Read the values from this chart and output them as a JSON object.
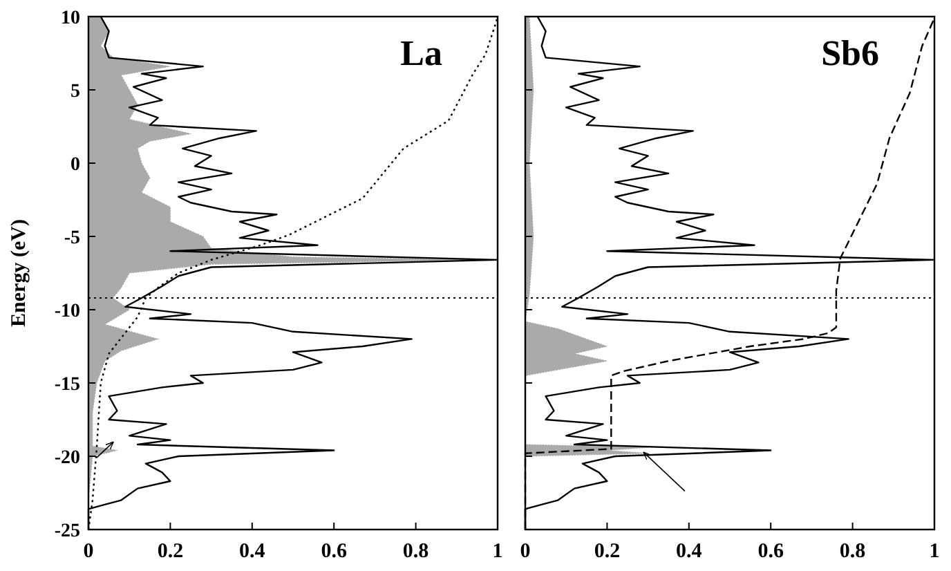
{
  "chart_data": [
    {
      "type": "line",
      "title": "La",
      "ylabel": "Energy (eV)",
      "orientation": "horizontal",
      "xlim": [
        0,
        1
      ],
      "xticks": [
        0,
        0.2,
        0.4,
        0.6,
        0.8,
        1
      ],
      "ylim": [
        -25,
        10
      ],
      "yticks": [
        10,
        5,
        0,
        -5,
        -10,
        -15,
        -20,
        -25
      ],
      "ref_lines": [
        {
          "axis": "y",
          "value": -9.2,
          "line_style": "dotted"
        }
      ],
      "series": [
        {
          "type": "area",
          "color": "#aaaaaa",
          "x": [
            10,
            9,
            8,
            7.2,
            6.6,
            6,
            5,
            4,
            3,
            2,
            1.5,
            1,
            0,
            -1,
            -2,
            -3,
            -4,
            -5,
            -5.8,
            -6.4,
            -6.6,
            -6.9,
            -7.5,
            -8.5,
            -9.2,
            -10,
            -11,
            -12,
            -12.8,
            -13.5,
            -15,
            -17,
            -19.3,
            -19.6,
            -20,
            -23,
            -25
          ],
          "values": [
            0.03,
            0.05,
            0.03,
            0.06,
            0.2,
            0.08,
            0.1,
            0.12,
            0.1,
            0.25,
            0.15,
            0.12,
            0.13,
            0.15,
            0.13,
            0.2,
            0.2,
            0.28,
            0.3,
            0.5,
            0.95,
            0.3,
            0.1,
            0.08,
            0.06,
            0.1,
            0.04,
            0.17,
            0.08,
            0.04,
            0.02,
            0.01,
            0.01,
            0.07,
            0.01,
            0,
            0
          ]
        },
        {
          "type": "line",
          "color": "#000000",
          "line_style": "solid",
          "x": [
            10,
            9,
            8,
            7.2,
            6.6,
            6.1,
            5.8,
            5.2,
            4.3,
            3.8,
            3.1,
            2.6,
            2.2,
            1.7,
            1.0,
            0.5,
            -0.2,
            -0.7,
            -1.3,
            -1.8,
            -2.3,
            -2.7,
            -3.3,
            -3.5,
            -4.0,
            -4.6,
            -5.1,
            -5.6,
            -6.0,
            -6.6,
            -7.1,
            -7.7,
            -8.4,
            -9.2,
            -9.8,
            -10.3,
            -10.6,
            -10.9,
            -11.5,
            -12.0,
            -12.5,
            -12.9,
            -13.6,
            -14.1,
            -14.5,
            -15.0,
            -15.3,
            -15.9,
            -16.9,
            -17.5,
            -17.8,
            -18.6,
            -18.9,
            -19.2,
            -19.6,
            -20.0,
            -20.5,
            -21.1,
            -21.7,
            -22.2,
            -23.0,
            -23.3,
            -23.6,
            -25
          ],
          "values": [
            0.03,
            0.05,
            0.04,
            0.05,
            0.28,
            0.13,
            0.19,
            0.11,
            0.18,
            0.1,
            0.17,
            0.15,
            0.41,
            0.32,
            0.23,
            0.3,
            0.26,
            0.35,
            0.22,
            0.3,
            0.22,
            0.25,
            0.35,
            0.46,
            0.37,
            0.44,
            0.37,
            0.56,
            0.2,
            1.0,
            0.3,
            0.22,
            0.18,
            0.13,
            0.09,
            0.25,
            0.15,
            0.4,
            0.5,
            0.79,
            0.67,
            0.5,
            0.57,
            0.5,
            0.25,
            0.28,
            0.18,
            0.05,
            0.07,
            0.05,
            0.19,
            0.1,
            0.2,
            0.12,
            0.6,
            0.22,
            0.14,
            0.18,
            0.2,
            0.12,
            0.08,
            0.04,
            0,
            0
          ]
        },
        {
          "color": "#000000",
          "line_style": "dotted",
          "x": [
            -25,
            -23,
            -19.5,
            -15,
            -13,
            -10.5,
            -9.2,
            -8.5,
            -7.5,
            -6.6,
            -5.6,
            -4.9,
            -2.4,
            1.0,
            2.9,
            6.1,
            7.4,
            9.5,
            10
          ],
          "values": [
            0,
            0.01,
            0.02,
            0.03,
            0.05,
            0.12,
            0.14,
            0.17,
            0.22,
            0.3,
            0.42,
            0.49,
            0.67,
            0.77,
            0.88,
            0.94,
            0.97,
            0.995,
            1.0
          ]
        }
      ]
    },
    {
      "type": "line",
      "title": "Sb6",
      "orientation": "horizontal",
      "xlim": [
        0,
        1
      ],
      "xticks": [
        0,
        0.2,
        0.4,
        0.6,
        0.8,
        1
      ],
      "ylim": [
        -25,
        10
      ],
      "yticks": [
        {
          "value": 10,
          "label": null
        },
        {
          "value": 5,
          "label": null
        },
        {
          "value": 0,
          "label": null
        },
        {
          "value": -5,
          "label": null
        },
        {
          "value": -10,
          "label": null
        },
        {
          "value": -15,
          "label": null
        },
        {
          "value": -20,
          "label": null
        },
        {
          "value": -25,
          "label": null
        }
      ],
      "tick_labels": "x",
      "ref_lines": [
        {
          "axis": "y",
          "value": -9.2,
          "line_style": "dotted"
        }
      ],
      "series": [
        {
          "type": "area",
          "color": "#aaaaaa",
          "x": [
            10,
            5,
            0,
            -5,
            -9,
            -10.8,
            -11.3,
            -12,
            -12.5,
            -13,
            -13.5,
            -14,
            -14.5,
            -19.2,
            -19.4,
            -19.6,
            -19.8,
            -20,
            -25
          ],
          "values": [
            0.01,
            0.02,
            0.01,
            0.02,
            0.01,
            0,
            0.08,
            0.15,
            0.2,
            0.12,
            0.2,
            0.1,
            0,
            0,
            0.3,
            0.2,
            0.3,
            0,
            0
          ]
        },
        {
          "type": "line",
          "color": "#000000",
          "line_style": "solid",
          "x": [
            10,
            9,
            8,
            7.2,
            6.6,
            6.1,
            5.8,
            5.2,
            4.3,
            3.8,
            3.1,
            2.6,
            2.2,
            1.7,
            1.0,
            0.5,
            -0.2,
            -0.7,
            -1.3,
            -1.8,
            -2.3,
            -2.7,
            -3.3,
            -3.5,
            -4.0,
            -4.6,
            -5.1,
            -5.6,
            -6.0,
            -6.6,
            -7.1,
            -7.7,
            -8.4,
            -9.2,
            -9.8,
            -10.3,
            -10.6,
            -10.9,
            -11.5,
            -12.0,
            -12.5,
            -12.9,
            -13.6,
            -14.1,
            -14.5,
            -15.0,
            -15.3,
            -15.9,
            -16.9,
            -17.5,
            -17.8,
            -18.6,
            -18.9,
            -19.2,
            -19.6,
            -20.0,
            -20.5,
            -21.1,
            -21.7,
            -22.2,
            -23.0,
            -23.3,
            -23.6,
            -25
          ],
          "values": [
            0.03,
            0.05,
            0.04,
            0.05,
            0.28,
            0.13,
            0.19,
            0.11,
            0.18,
            0.1,
            0.17,
            0.15,
            0.41,
            0.32,
            0.23,
            0.3,
            0.26,
            0.35,
            0.22,
            0.3,
            0.22,
            0.25,
            0.35,
            0.46,
            0.37,
            0.44,
            0.37,
            0.56,
            0.2,
            1.0,
            0.3,
            0.22,
            0.18,
            0.13,
            0.09,
            0.25,
            0.15,
            0.4,
            0.5,
            0.79,
            0.67,
            0.5,
            0.57,
            0.5,
            0.25,
            0.28,
            0.18,
            0.05,
            0.07,
            0.05,
            0.19,
            0.1,
            0.2,
            0.12,
            0.6,
            0.22,
            0.14,
            0.18,
            0.2,
            0.12,
            0.08,
            0.04,
            0,
            0
          ]
        },
        {
          "color": "#000000",
          "line_style": "dashed",
          "x": [
            -25,
            -19.8,
            -19.5,
            -17,
            -14.5,
            -14.2,
            -13.5,
            -12.5,
            -12,
            -11.6,
            -11.2,
            -8.7,
            -6.5,
            -1.4,
            1.7,
            4.8,
            8.0,
            9.9
          ],
          "values": [
            0,
            0,
            0.21,
            0.21,
            0.21,
            0.24,
            0.35,
            0.55,
            0.68,
            0.74,
            0.76,
            0.76,
            0.77,
            0.86,
            0.89,
            0.94,
            0.97,
            1.0
          ]
        }
      ]
    }
  ]
}
